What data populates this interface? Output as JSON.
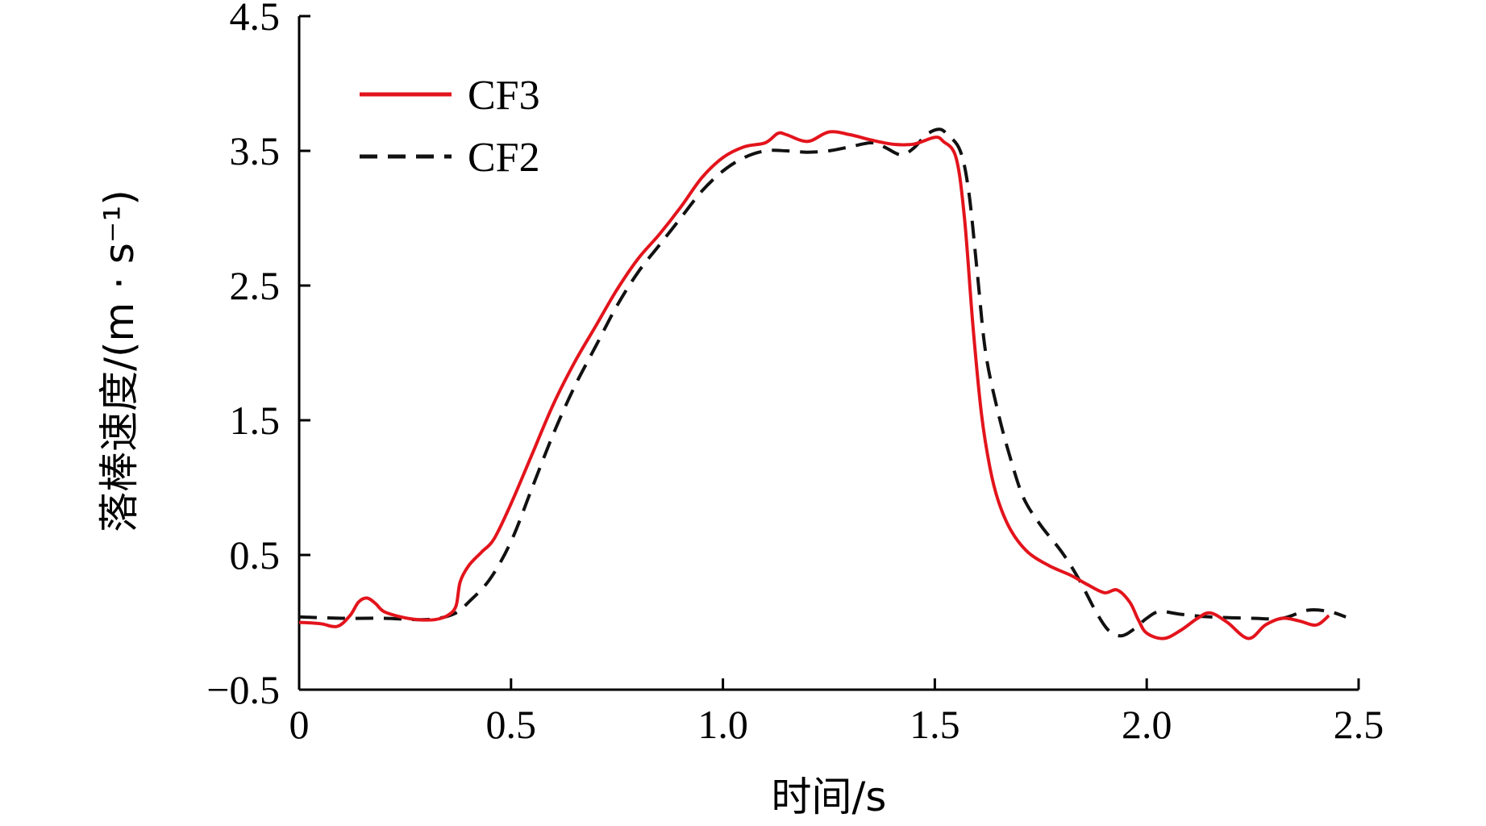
{
  "chart_data": {
    "type": "line",
    "xlabel": "时间/s",
    "ylabel": "落棒速度/(m · s⁻¹)",
    "xlim": [
      0,
      2.5
    ],
    "ylim": [
      -0.5,
      4.5
    ],
    "x_ticks": [
      "0",
      "0.5",
      "1.0",
      "1.5",
      "2.0",
      "2.5"
    ],
    "y_ticks": [
      "−0.5",
      "0.5",
      "1.5",
      "2.5",
      "3.5",
      "4.5"
    ],
    "legend_position": "top-left",
    "grid": false,
    "series": [
      {
        "name": "CF3",
        "color": "#e3141c",
        "style": "solid",
        "points": [
          [
            0.0,
            0.0
          ],
          [
            0.05,
            -0.01
          ],
          [
            0.09,
            -0.03
          ],
          [
            0.12,
            0.05
          ],
          [
            0.14,
            0.15
          ],
          [
            0.16,
            0.18
          ],
          [
            0.18,
            0.14
          ],
          [
            0.2,
            0.08
          ],
          [
            0.24,
            0.04
          ],
          [
            0.28,
            0.02
          ],
          [
            0.32,
            0.02
          ],
          [
            0.35,
            0.05
          ],
          [
            0.37,
            0.12
          ],
          [
            0.38,
            0.3
          ],
          [
            0.4,
            0.42
          ],
          [
            0.43,
            0.52
          ],
          [
            0.46,
            0.62
          ],
          [
            0.5,
            0.88
          ],
          [
            0.55,
            1.25
          ],
          [
            0.6,
            1.62
          ],
          [
            0.65,
            1.93
          ],
          [
            0.7,
            2.2
          ],
          [
            0.75,
            2.47
          ],
          [
            0.8,
            2.7
          ],
          [
            0.85,
            2.88
          ],
          [
            0.9,
            3.08
          ],
          [
            0.95,
            3.3
          ],
          [
            1.0,
            3.45
          ],
          [
            1.05,
            3.53
          ],
          [
            1.1,
            3.56
          ],
          [
            1.13,
            3.63
          ],
          [
            1.15,
            3.62
          ],
          [
            1.2,
            3.57
          ],
          [
            1.25,
            3.64
          ],
          [
            1.3,
            3.62
          ],
          [
            1.35,
            3.58
          ],
          [
            1.4,
            3.55
          ],
          [
            1.45,
            3.55
          ],
          [
            1.5,
            3.6
          ],
          [
            1.52,
            3.57
          ],
          [
            1.55,
            3.45
          ],
          [
            1.57,
            3.0
          ],
          [
            1.59,
            2.2
          ],
          [
            1.61,
            1.55
          ],
          [
            1.63,
            1.15
          ],
          [
            1.65,
            0.9
          ],
          [
            1.68,
            0.68
          ],
          [
            1.72,
            0.52
          ],
          [
            1.77,
            0.42
          ],
          [
            1.82,
            0.35
          ],
          [
            1.86,
            0.28
          ],
          [
            1.9,
            0.22
          ],
          [
            1.93,
            0.24
          ],
          [
            1.96,
            0.15
          ],
          [
            1.98,
            0.02
          ],
          [
            2.0,
            -0.08
          ],
          [
            2.04,
            -0.12
          ],
          [
            2.08,
            -0.06
          ],
          [
            2.12,
            0.03
          ],
          [
            2.15,
            0.07
          ],
          [
            2.19,
            0.0
          ],
          [
            2.24,
            -0.12
          ],
          [
            2.28,
            -0.02
          ],
          [
            2.32,
            0.03
          ],
          [
            2.36,
            0.01
          ],
          [
            2.4,
            -0.02
          ],
          [
            2.43,
            0.05
          ]
        ]
      },
      {
        "name": "CF2",
        "color": "#111111",
        "style": "dashed",
        "points": [
          [
            0.0,
            0.04
          ],
          [
            0.1,
            0.03
          ],
          [
            0.2,
            0.03
          ],
          [
            0.28,
            0.02
          ],
          [
            0.33,
            0.03
          ],
          [
            0.37,
            0.07
          ],
          [
            0.4,
            0.15
          ],
          [
            0.45,
            0.32
          ],
          [
            0.5,
            0.6
          ],
          [
            0.55,
            1.0
          ],
          [
            0.6,
            1.4
          ],
          [
            0.65,
            1.75
          ],
          [
            0.7,
            2.05
          ],
          [
            0.75,
            2.35
          ],
          [
            0.8,
            2.6
          ],
          [
            0.85,
            2.8
          ],
          [
            0.9,
            3.0
          ],
          [
            0.95,
            3.2
          ],
          [
            1.0,
            3.35
          ],
          [
            1.05,
            3.45
          ],
          [
            1.1,
            3.5
          ],
          [
            1.15,
            3.5
          ],
          [
            1.2,
            3.49
          ],
          [
            1.25,
            3.5
          ],
          [
            1.3,
            3.53
          ],
          [
            1.35,
            3.56
          ],
          [
            1.38,
            3.53
          ],
          [
            1.42,
            3.47
          ],
          [
            1.45,
            3.52
          ],
          [
            1.48,
            3.62
          ],
          [
            1.51,
            3.66
          ],
          [
            1.53,
            3.62
          ],
          [
            1.56,
            3.5
          ],
          [
            1.58,
            3.2
          ],
          [
            1.6,
            2.6
          ],
          [
            1.62,
            2.0
          ],
          [
            1.65,
            1.55
          ],
          [
            1.68,
            1.2
          ],
          [
            1.71,
            0.92
          ],
          [
            1.75,
            0.72
          ],
          [
            1.8,
            0.52
          ],
          [
            1.84,
            0.32
          ],
          [
            1.88,
            0.08
          ],
          [
            1.91,
            -0.06
          ],
          [
            1.94,
            -0.1
          ],
          [
            1.97,
            -0.05
          ],
          [
            2.0,
            0.03
          ],
          [
            2.03,
            0.08
          ],
          [
            2.08,
            0.06
          ],
          [
            2.15,
            0.04
          ],
          [
            2.25,
            0.03
          ],
          [
            2.32,
            0.03
          ],
          [
            2.38,
            0.09
          ],
          [
            2.43,
            0.08
          ],
          [
            2.47,
            0.04
          ]
        ]
      }
    ]
  }
}
